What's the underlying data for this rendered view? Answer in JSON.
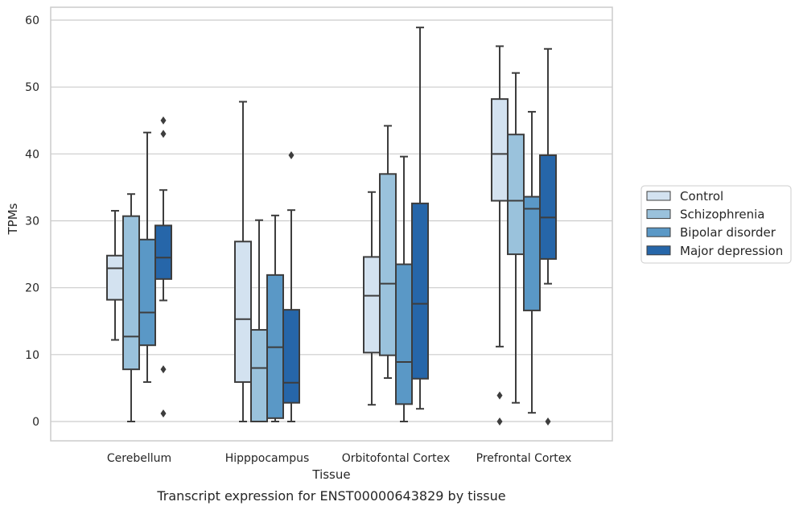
{
  "chart_data": {
    "type": "box",
    "caption": "Transcript expression for ENST00000643829 by tissue",
    "xlabel": "Tissue",
    "ylabel": "TPMs",
    "ylim": [
      -3,
      62
    ],
    "yticks": [
      0,
      10,
      20,
      30,
      40,
      50,
      60
    ],
    "grid": "horizontal",
    "legend_position": "right",
    "categories": [
      "Cerebellum",
      "Hipppocampus",
      "Orbitofontal Cortex",
      "Prefrontal Cortex"
    ],
    "series": [
      {
        "name": "Control",
        "color": "#d3e2f0",
        "boxes": [
          {
            "whisker_low": 12.2,
            "q1": 18.2,
            "median": 22.9,
            "q3": 24.8,
            "whisker_high": 31.5,
            "outliers": []
          },
          {
            "whisker_low": 0.0,
            "q1": 5.9,
            "median": 15.3,
            "q3": 26.9,
            "whisker_high": 47.8,
            "outliers": []
          },
          {
            "whisker_low": 2.5,
            "q1": 10.3,
            "median": 18.8,
            "q3": 24.6,
            "whisker_high": 34.3,
            "outliers": []
          },
          {
            "whisker_low": 11.2,
            "q1": 33.0,
            "median": 40.0,
            "q3": 48.2,
            "whisker_high": 56.1,
            "outliers": [
              3.9,
              0.0
            ]
          }
        ]
      },
      {
        "name": "Schizophrenia",
        "color": "#9ac2dc",
        "boxes": [
          {
            "whisker_low": 0.0,
            "q1": 7.8,
            "median": 12.7,
            "q3": 30.7,
            "whisker_high": 34.0,
            "outliers": []
          },
          {
            "whisker_low": 0.0,
            "q1": 0.0,
            "median": 8.0,
            "q3": 13.7,
            "whisker_high": 30.1,
            "outliers": []
          },
          {
            "whisker_low": 6.5,
            "q1": 9.9,
            "median": 20.6,
            "q3": 37.0,
            "whisker_high": 44.2,
            "outliers": []
          },
          {
            "whisker_low": 2.8,
            "q1": 25.0,
            "median": 33.0,
            "q3": 42.9,
            "whisker_high": 52.1,
            "outliers": []
          }
        ]
      },
      {
        "name": "Bipolar disorder",
        "color": "#5a98c6",
        "boxes": [
          {
            "whisker_low": 5.9,
            "q1": 11.4,
            "median": 16.3,
            "q3": 27.2,
            "whisker_high": 43.2,
            "outliers": []
          },
          {
            "whisker_low": 0.0,
            "q1": 0.5,
            "median": 11.1,
            "q3": 21.9,
            "whisker_high": 30.8,
            "outliers": []
          },
          {
            "whisker_low": 0.0,
            "q1": 2.6,
            "median": 8.9,
            "q3": 23.5,
            "whisker_high": 39.6,
            "outliers": []
          },
          {
            "whisker_low": 1.3,
            "q1": 16.6,
            "median": 31.8,
            "q3": 33.6,
            "whisker_high": 46.3,
            "outliers": []
          }
        ]
      },
      {
        "name": "Major depression",
        "color": "#2666a9",
        "boxes": [
          {
            "whisker_low": 18.1,
            "q1": 21.3,
            "median": 24.5,
            "q3": 29.3,
            "whisker_high": 34.6,
            "outliers": [
              45.0,
              43.0,
              7.8,
              1.2
            ]
          },
          {
            "whisker_low": 0.0,
            "q1": 2.8,
            "median": 5.8,
            "q3": 16.7,
            "whisker_high": 31.6,
            "outliers": [
              39.8
            ]
          },
          {
            "whisker_low": 1.9,
            "q1": 6.4,
            "median": 17.6,
            "q3": 32.6,
            "whisker_high": 58.9,
            "outliers": []
          },
          {
            "whisker_low": 20.6,
            "q1": 24.3,
            "median": 30.5,
            "q3": 39.8,
            "whisker_high": 55.7,
            "outliers": [
              0.0
            ]
          }
        ]
      }
    ]
  }
}
